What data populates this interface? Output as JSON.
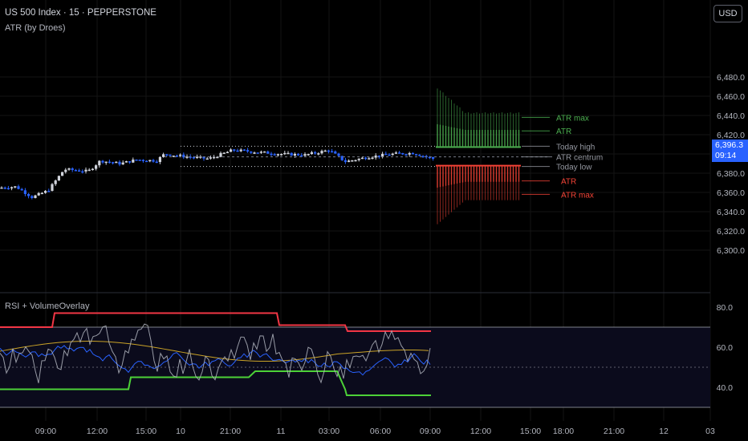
{
  "header": {
    "symbol_line": "US 500 Index · 15 · PEPPERSTONE",
    "indicator_label": "ATR (by Droes)",
    "sub_indicator_label": "RSI + VolumeOverlay"
  },
  "currency_button": "USD",
  "last_price": {
    "value": "6,396.3",
    "countdown": "09:14",
    "color": "#2962ff"
  },
  "price_axis": {
    "ticks": [
      "6,480.0",
      "6,460.0",
      "6,440.0",
      "6,420.0",
      "6,400.0",
      "6,380.0",
      "6,360.0",
      "6,340.0",
      "6,320.0",
      "6,300.0"
    ],
    "tick_values": [
      6480,
      6460,
      6440,
      6420,
      6400,
      6380,
      6360,
      6340,
      6320,
      6300
    ]
  },
  "rsi_axis": {
    "ticks": [
      "80.0",
      "60.0",
      "40.0"
    ],
    "tick_values": [
      80,
      60,
      40
    ]
  },
  "time_axis": {
    "labels": [
      "09:00",
      "12:00",
      "15:00",
      "10",
      "21:00",
      "11",
      "03:00",
      "06:00",
      "09:00",
      "12:00",
      "15:00",
      "18:00",
      "21:00",
      "12",
      "03"
    ]
  },
  "atr_labels": [
    {
      "text": "ATR max",
      "color": "#4caf50",
      "price": 6438
    },
    {
      "text": "ATR",
      "color": "#4caf50",
      "price": 6424
    },
    {
      "text": "Today high",
      "color": "#9598a1",
      "price": 6408
    },
    {
      "text": "ATR centrum",
      "color": "#9598a1",
      "price": 6397
    },
    {
      "text": "Today low",
      "color": "#9598a1",
      "price": 6387
    },
    {
      "text": "ATR",
      "color": "#f44336",
      "price": 6372
    },
    {
      "text": "ATR max",
      "color": "#f44336",
      "price": 6358
    }
  ],
  "colors": {
    "background": "#000000",
    "up_candle": "#d1d4dc",
    "down_candle": "#2962ff",
    "atr_up": "#4caf50",
    "atr_down": "#f44336",
    "rsi_upper": "#f23645",
    "rsi_lower": "#4cd137",
    "rsi_line": "#b2b5be",
    "rsi_avg": "#c9a227",
    "rsi_blue": "#2962ff"
  }
}
